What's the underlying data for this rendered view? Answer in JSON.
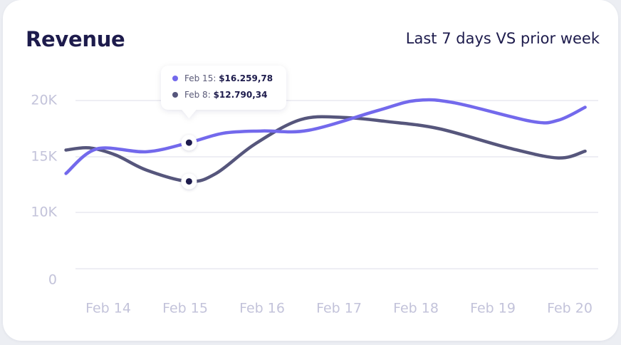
{
  "header": {
    "title": "Revenue",
    "subtitle": "Last 7 days VS prior week"
  },
  "colors": {
    "current": "#7369ec",
    "prior": "#56567c",
    "grid": "#eeeef4",
    "axis_text": "#c3c3da",
    "title": "#1d1b4c"
  },
  "chart_data": {
    "type": "line",
    "title": "Revenue",
    "subtitle": "Last 7 days VS prior week",
    "x": [
      "Feb 14",
      "Feb 15",
      "Feb 16",
      "Feb 17",
      "Feb 18",
      "Feb 19",
      "Feb 20"
    ],
    "y_ticks": [
      {
        "value": 0,
        "label": "0"
      },
      {
        "value": 10000,
        "label": "10K"
      },
      {
        "value": 15000,
        "label": "15K"
      },
      {
        "value": 20000,
        "label": "20K"
      }
    ],
    "grid": true,
    "series": [
      {
        "key": "current",
        "color": "#7369ec",
        "points": [
          {
            "x": 13.45,
            "y": 13500
          },
          {
            "x": 13.85,
            "y": 15700
          },
          {
            "x": 14.5,
            "y": 15450
          },
          {
            "x": 15.05,
            "y": 16259.78
          },
          {
            "x": 15.5,
            "y": 17100
          },
          {
            "x": 16.0,
            "y": 17300
          },
          {
            "x": 16.6,
            "y": 17350
          },
          {
            "x": 17.5,
            "y": 19100
          },
          {
            "x": 18.0,
            "y": 20000
          },
          {
            "x": 18.5,
            "y": 19800
          },
          {
            "x": 19.5,
            "y": 18150
          },
          {
            "x": 19.85,
            "y": 18250
          },
          {
            "x": 20.2,
            "y": 19400
          }
        ]
      },
      {
        "key": "prior",
        "color": "#56567c",
        "points": [
          {
            "x": 13.45,
            "y": 15600
          },
          {
            "x": 13.75,
            "y": 15800
          },
          {
            "x": 14.1,
            "y": 15150
          },
          {
            "x": 14.5,
            "y": 13800
          },
          {
            "x": 15.05,
            "y": 12790.34
          },
          {
            "x": 15.4,
            "y": 13500
          },
          {
            "x": 15.9,
            "y": 16100
          },
          {
            "x": 16.5,
            "y": 18300
          },
          {
            "x": 17.05,
            "y": 18500
          },
          {
            "x": 17.6,
            "y": 18150
          },
          {
            "x": 18.3,
            "y": 17500
          },
          {
            "x": 19.2,
            "y": 15800
          },
          {
            "x": 19.85,
            "y": 14900
          },
          {
            "x": 20.2,
            "y": 15500
          }
        ]
      }
    ],
    "tooltip": {
      "x": 15.05,
      "entries": [
        {
          "label": "Feb 15:",
          "value": "$16.259,78",
          "color": "#7369ec"
        },
        {
          "label": "Feb 8:",
          "value": "$12.790,34",
          "color": "#56567c"
        }
      ]
    }
  }
}
